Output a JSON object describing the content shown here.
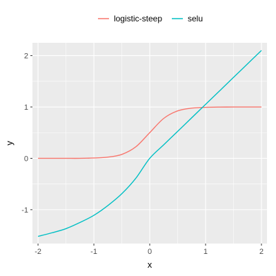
{
  "chart_data": {
    "type": "line",
    "xlabel": "x",
    "ylabel": "y",
    "xlim": [
      -2.1,
      2.1
    ],
    "ylim": [
      -1.66,
      2.25
    ],
    "xticks": [
      -2,
      -1,
      0,
      1,
      2
    ],
    "yticks": [
      -1,
      0,
      1,
      2
    ],
    "xtick_labels": [
      "-2",
      "-1",
      "0",
      "1",
      "2"
    ],
    "ytick_labels": [
      "-1",
      "0",
      "1",
      "2"
    ],
    "grid": true,
    "legend_position": "top",
    "background": "#EBEBEB",
    "grid_color": "#FFFFFF",
    "x": [
      -2.0,
      -1.75,
      -1.5,
      -1.25,
      -1.0,
      -0.75,
      -0.5,
      -0.25,
      0.0,
      0.25,
      0.5,
      0.75,
      1.0,
      1.25,
      1.5,
      1.75,
      2.0
    ],
    "series": [
      {
        "name": "logistic-steep",
        "color": "#F8766D",
        "values": [
          0.0,
          0.0,
          0.0,
          0.0,
          0.007,
          0.023,
          0.076,
          0.223,
          0.5,
          0.777,
          0.924,
          0.977,
          0.993,
          0.998,
          0.999,
          1.0,
          1.0
        ]
      },
      {
        "name": "selu",
        "color": "#00BFC4",
        "values": [
          -1.52,
          -1.45,
          -1.37,
          -1.25,
          -1.11,
          -0.92,
          -0.69,
          -0.39,
          0.0,
          0.263,
          0.525,
          0.788,
          1.051,
          1.313,
          1.576,
          1.839,
          2.101
        ]
      }
    ]
  }
}
